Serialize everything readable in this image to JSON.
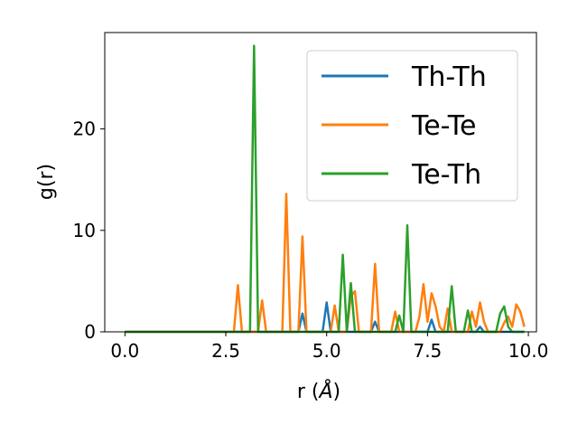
{
  "chart_data": {
    "type": "line",
    "xlabel_prefix": "r (",
    "xlabel_unit": "Å",
    "xlabel_suffix": ")",
    "ylabel": "g(r)",
    "xlim": [
      -0.5,
      10.2
    ],
    "ylim": [
      0,
      29.5
    ],
    "xticks": [
      0.0,
      2.5,
      5.0,
      7.5,
      10.0
    ],
    "xtick_labels": [
      "0.0",
      "2.5",
      "5.0",
      "7.5",
      "10.0"
    ],
    "yticks": [
      0,
      10,
      20
    ],
    "ytick_labels": [
      "0",
      "10",
      "20"
    ],
    "legend_position": "top-right",
    "grid": false,
    "series": [
      {
        "name": "Th-Th",
        "color": "#1f77b4",
        "x": [
          0.0,
          4.3,
          4.4,
          4.5,
          4.9,
          5.0,
          5.1,
          6.1,
          6.2,
          6.3,
          7.5,
          7.6,
          7.7,
          8.7,
          8.8,
          8.9,
          9.9
        ],
        "y": [
          0,
          0,
          1.8,
          0,
          0,
          2.9,
          0,
          0,
          1.0,
          0,
          0,
          1.2,
          0,
          0,
          0.5,
          0,
          0
        ]
      },
      {
        "name": "Te-Te",
        "color": "#ff7f0e",
        "x": [
          0.0,
          2.7,
          2.8,
          2.9,
          3.3,
          3.4,
          3.5,
          3.9,
          4.0,
          4.1,
          4.3,
          4.4,
          4.5,
          5.1,
          5.2,
          5.3,
          5.5,
          5.6,
          5.7,
          5.8,
          6.1,
          6.2,
          6.3,
          6.6,
          6.7,
          6.8,
          7.2,
          7.3,
          7.4,
          7.5,
          7.6,
          7.7,
          7.8,
          7.9,
          8.0,
          8.1,
          8.2,
          8.5,
          8.6,
          8.7,
          8.8,
          8.9,
          9.0,
          9.3,
          9.4,
          9.5,
          9.6,
          9.7,
          9.8,
          9.9
        ],
        "y": [
          0,
          0,
          4.6,
          0,
          0,
          3.1,
          0,
          0,
          13.6,
          0,
          0,
          9.4,
          0,
          0,
          2.6,
          0,
          0,
          3.5,
          4.0,
          0,
          0,
          6.7,
          0,
          0,
          2.0,
          0,
          0,
          1.5,
          4.7,
          1.0,
          3.8,
          2.5,
          0.5,
          0,
          2.3,
          0,
          0,
          0,
          2.0,
          0.5,
          2.9,
          1.0,
          0,
          0,
          0.9,
          1.5,
          0.5,
          2.7,
          2.0,
          0.5
        ]
      },
      {
        "name": "Te-Th",
        "color": "#2ca02c",
        "x": [
          0.0,
          3.1,
          3.2,
          3.3,
          5.3,
          5.4,
          5.5,
          5.6,
          5.7,
          6.7,
          6.8,
          6.9,
          7.0,
          7.1,
          8.0,
          8.1,
          8.2,
          8.4,
          8.5,
          8.6,
          9.2,
          9.3,
          9.4,
          9.5,
          9.6,
          9.7,
          9.8,
          9.9
        ],
        "y": [
          0,
          0,
          28.2,
          0,
          0,
          7.6,
          0,
          4.8,
          0,
          0,
          1.6,
          0,
          10.5,
          0,
          0,
          4.5,
          0,
          0,
          2.1,
          0,
          0,
          1.8,
          2.5,
          0.5,
          0,
          0,
          0,
          0
        ]
      }
    ]
  }
}
